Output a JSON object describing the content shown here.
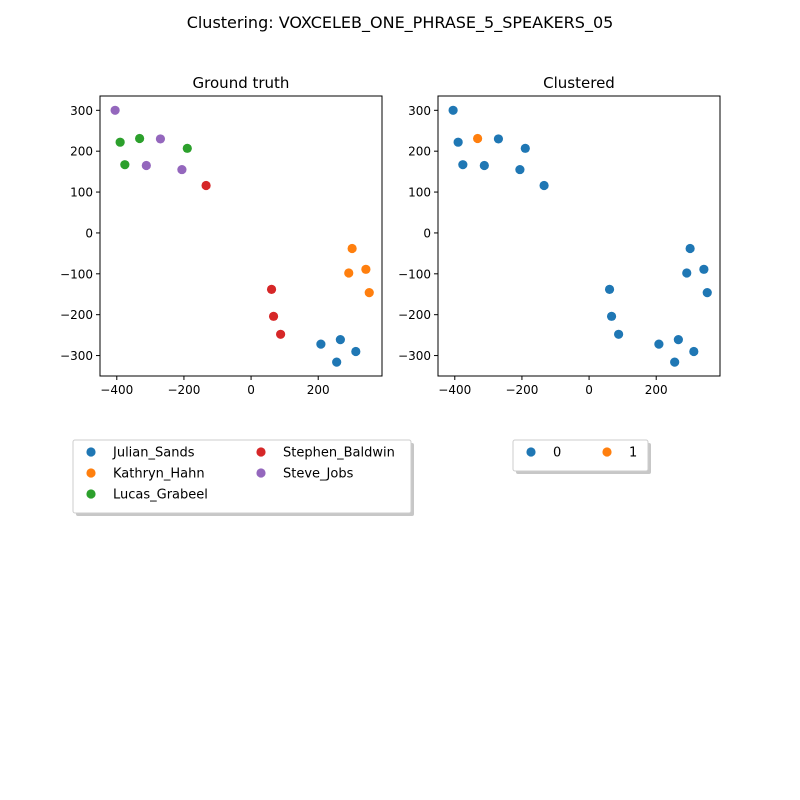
{
  "figure": {
    "title": "Clustering: VOXCELEB_ONE_PHRASE_5_SPEAKERS_05"
  },
  "chart_data": [
    {
      "type": "scatter",
      "title": "Ground truth",
      "xlabel": "",
      "ylabel": "",
      "xlim": [
        -450,
        390
      ],
      "ylim": [
        -350,
        335
      ],
      "xticks": [
        -400,
        -200,
        0,
        200
      ],
      "yticks": [
        -300,
        -200,
        -100,
        0,
        100,
        200,
        300
      ],
      "grid": false,
      "legend": {
        "placement": "below",
        "columns": 2
      },
      "series": [
        {
          "name": "Julian_Sands",
          "color": "#1f77b4",
          "points": [
            [
              208,
              -272
            ],
            [
              266,
              -261
            ],
            [
              255,
              -316
            ],
            [
              312,
              -290
            ]
          ]
        },
        {
          "name": "Kathryn_Hahn",
          "color": "#ff7f0e",
          "points": [
            [
              301,
              -38
            ],
            [
              291,
              -98
            ],
            [
              342,
              -89
            ],
            [
              352,
              -146
            ]
          ]
        },
        {
          "name": "Lucas_Grabeel",
          "color": "#2ca02c",
          "points": [
            [
              -390,
              222
            ],
            [
              -376,
              167
            ],
            [
              -332,
              231
            ],
            [
              -190,
              207
            ]
          ]
        },
        {
          "name": "Stephen_Baldwin",
          "color": "#d62728",
          "points": [
            [
              -134,
              116
            ],
            [
              61,
              -138
            ],
            [
              67,
              -204
            ],
            [
              88,
              -248
            ]
          ]
        },
        {
          "name": "Steve_Jobs",
          "color": "#9467bd",
          "points": [
            [
              -405,
              300
            ],
            [
              -312,
              165
            ],
            [
              -270,
              230
            ],
            [
              -206,
              155
            ]
          ]
        }
      ]
    },
    {
      "type": "scatter",
      "title": "Clustered",
      "xlabel": "",
      "ylabel": "",
      "xlim": [
        -450,
        390
      ],
      "ylim": [
        -350,
        335
      ],
      "xticks": [
        -400,
        -200,
        0,
        200
      ],
      "yticks": [
        -300,
        -200,
        -100,
        0,
        100,
        200,
        300
      ],
      "grid": false,
      "legend": {
        "placement": "below",
        "columns": 2
      },
      "series": [
        {
          "name": "0",
          "color": "#1f77b4",
          "points": [
            [
              208,
              -272
            ],
            [
              266,
              -261
            ],
            [
              255,
              -316
            ],
            [
              312,
              -290
            ],
            [
              301,
              -38
            ],
            [
              291,
              -98
            ],
            [
              342,
              -89
            ],
            [
              352,
              -146
            ],
            [
              -390,
              222
            ],
            [
              -376,
              167
            ],
            [
              -190,
              207
            ],
            [
              -134,
              116
            ],
            [
              61,
              -138
            ],
            [
              67,
              -204
            ],
            [
              88,
              -248
            ],
            [
              -405,
              300
            ],
            [
              -312,
              165
            ],
            [
              -270,
              230
            ],
            [
              -206,
              155
            ]
          ]
        },
        {
          "name": "1",
          "color": "#ff7f0e",
          "points": [
            [
              -332,
              231
            ]
          ]
        }
      ]
    }
  ]
}
